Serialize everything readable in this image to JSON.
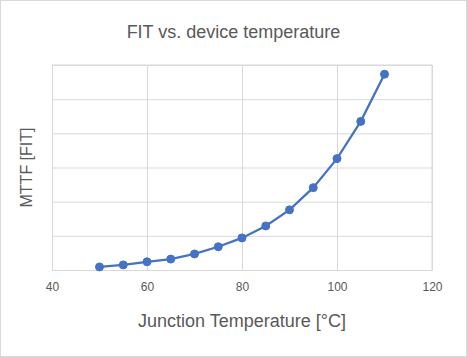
{
  "chart_data": {
    "type": "line",
    "title": "FIT vs. device temperature",
    "x_label": "Junction Temperature [°C]",
    "y_label": "MTTF [FIT]",
    "x": [
      50,
      55,
      60,
      65,
      70,
      75,
      80,
      85,
      90,
      95,
      100,
      105,
      110
    ],
    "values": [
      0.09,
      0.15,
      0.24,
      0.32,
      0.47,
      0.68,
      0.94,
      1.29,
      1.76,
      2.41,
      3.26,
      4.35,
      5.73
    ],
    "color": "#4472c4",
    "marker": "circle",
    "line_style": "solid",
    "xlim": [
      40,
      120
    ],
    "xticks": [
      40,
      60,
      80,
      100,
      120
    ],
    "ylim": [
      0,
      6
    ],
    "yticks": [
      0,
      1,
      2,
      3,
      4,
      5,
      6
    ],
    "grid": true,
    "tick_labels": "x"
  }
}
